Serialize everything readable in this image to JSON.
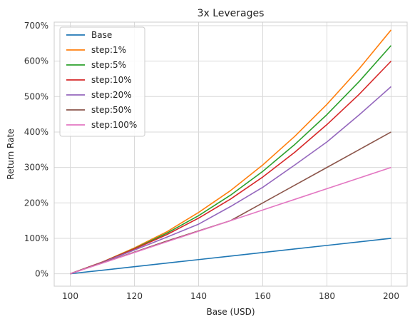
{
  "chart_data": {
    "type": "line",
    "title": "3x Leverages",
    "xlabel": "Base (USD)",
    "ylabel": "Return Rate",
    "xlim": [
      95,
      205
    ],
    "ylim": [
      -35,
      710
    ],
    "x_ticks": [
      100,
      120,
      140,
      160,
      180,
      200
    ],
    "y_ticks": [
      0,
      100,
      200,
      300,
      400,
      500,
      600,
      700
    ],
    "y_tick_format": "{v}%",
    "grid": true,
    "legend_position": "top-left",
    "x": [
      100,
      110,
      120,
      130,
      140,
      150,
      160,
      170,
      180,
      190,
      200
    ],
    "series": [
      {
        "name": "Base",
        "color": "#1f77b4",
        "values": [
          0,
          10,
          20,
          30,
          40,
          50,
          60,
          70,
          80,
          90,
          100
        ]
      },
      {
        "name": "step:1%",
        "color": "#ff7f0e",
        "values": [
          0,
          33,
          73,
          118,
          173,
          235,
          307,
          388,
          478,
          578,
          688
        ]
      },
      {
        "name": "step:5%",
        "color": "#2ca02c",
        "values": [
          0,
          33,
          71,
          114,
          164,
          222,
          289,
          365,
          449,
          542,
          644
        ]
      },
      {
        "name": "step:10%",
        "color": "#d62728",
        "values": [
          0,
          33,
          70,
          110,
          157,
          211,
          273,
          343,
          421,
          506,
          600
        ]
      },
      {
        "name": "step:20%",
        "color": "#9467bd",
        "values": [
          0,
          32,
          67,
          103,
          140,
          190,
          244,
          307,
          372,
          448,
          528
        ]
      },
      {
        "name": "step:50%",
        "color": "#8c564b",
        "values": [
          0,
          31,
          61,
          92,
          121,
          150,
          200,
          250,
          300,
          350,
          400
        ]
      },
      {
        "name": "step:100%",
        "color": "#e377c2",
        "values": [
          0,
          30,
          60,
          90,
          120,
          150,
          180,
          210,
          240,
          270,
          300
        ]
      }
    ]
  }
}
